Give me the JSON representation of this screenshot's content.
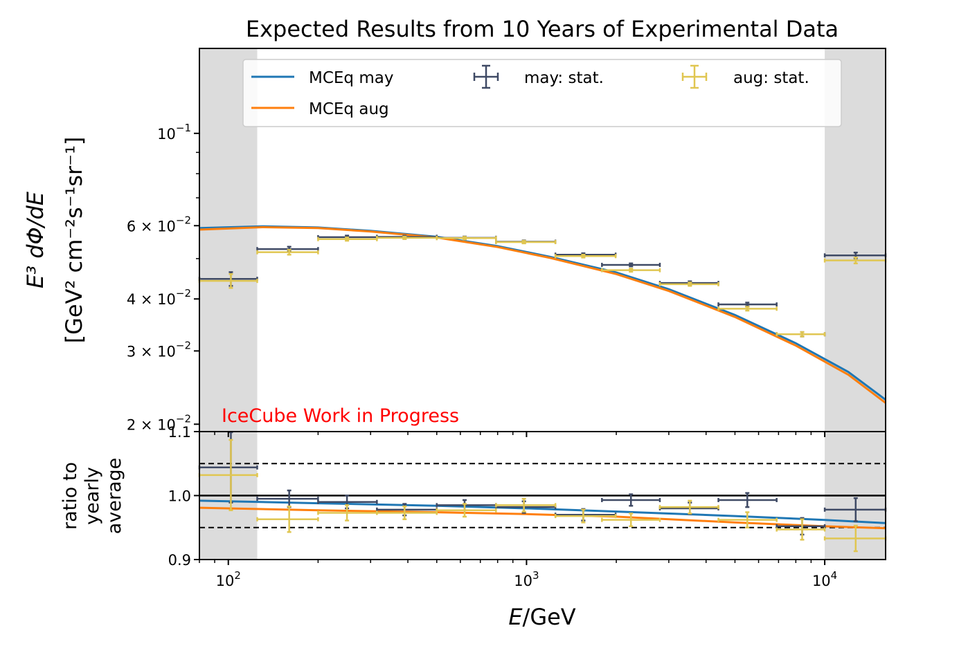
{
  "chart_data": {
    "type": "line",
    "title": "Expected Results from 10 Years of Experimental Data",
    "xlabel_italic": "E",
    "xlabel_rest": "/GeV",
    "x_scale": "log",
    "xlim": [
      80,
      16000
    ],
    "x_ticks": [
      {
        "value": 100,
        "base": "10",
        "exp": "2"
      },
      {
        "value": 1000,
        "base": "10",
        "exp": "3"
      },
      {
        "value": 10000,
        "base": "10",
        "exp": "4"
      }
    ],
    "shaded_regions": [
      [
        80,
        125
      ],
      [
        10000,
        16000
      ]
    ],
    "top_panel": {
      "y_scale": "log",
      "ylim": [
        0.0192,
        0.16
      ],
      "ylabel_line1": "E³ dΦ/dE",
      "ylabel_line2": "[GeV² cm⁻²s⁻¹sr⁻¹]",
      "y_ticks": [
        {
          "value": 0.1,
          "mant": "",
          "exp": "−1"
        },
        {
          "value": 0.06,
          "mant": "6 × ",
          "exp": "−2"
        },
        {
          "value": 0.04,
          "mant": "4 × ",
          "exp": "−2"
        },
        {
          "value": 0.03,
          "mant": "3 × ",
          "exp": "−2"
        },
        {
          "value": 0.02,
          "mant": "2 × ",
          "exp": "−2"
        }
      ],
      "lines": [
        {
          "name": "MCEq may",
          "color": "#1f77b4",
          "x": [
            80,
            130,
            200,
            300,
            500,
            800,
            1200,
            2000,
            3000,
            5000,
            8000,
            12000,
            16000
          ],
          "y": [
            0.0592,
            0.0598,
            0.0594,
            0.0583,
            0.0564,
            0.0536,
            0.0505,
            0.0463,
            0.0422,
            0.0366,
            0.0313,
            0.0267,
            0.0229
          ]
        },
        {
          "name": "MCEq aug",
          "color": "#ff7f0e",
          "x": [
            80,
            130,
            200,
            300,
            500,
            800,
            1200,
            2000,
            3000,
            5000,
            8000,
            12000,
            16000
          ],
          "y": [
            0.0587,
            0.0595,
            0.0592,
            0.0581,
            0.0562,
            0.0533,
            0.0502,
            0.0459,
            0.0418,
            0.0362,
            0.0309,
            0.0263,
            0.0225
          ]
        }
      ],
      "points": [
        {
          "name": "may: stat.",
          "color": "#3f4a65",
          "bins": [
            [
              80,
              125
            ],
            [
              125,
              200
            ],
            [
              200,
              315
            ],
            [
              315,
              500
            ],
            [
              500,
              790
            ],
            [
              790,
              1250
            ],
            [
              1250,
              1990
            ],
            [
              1790,
              2800
            ],
            [
              2800,
              4400
            ],
            [
              4400,
              6900
            ],
            [
              6900,
              10000
            ],
            [
              10000,
              16000
            ]
          ],
          "x": [
            102,
            160,
            250,
            390,
            620,
            980,
            1550,
            2240,
            3530,
            5500,
            8400,
            12700
          ],
          "y": [
            0.0447,
            0.0527,
            0.0563,
            0.0564,
            0.0561,
            0.0549,
            0.0511,
            0.0483,
            0.0437,
            0.0388,
            0.0329,
            0.0509
          ],
          "yerr": [
            0.0017,
            0.0007,
            0.0005,
            0.0004,
            0.0004,
            0.0004,
            0.0004,
            0.0004,
            0.0004,
            0.0004,
            0.0004,
            0.0008
          ]
        },
        {
          "name": "aug: stat.",
          "color": "#e0c651",
          "bins": [
            [
              80,
              125
            ],
            [
              125,
              200
            ],
            [
              200,
              315
            ],
            [
              315,
              500
            ],
            [
              500,
              790
            ],
            [
              790,
              1250
            ],
            [
              1250,
              1990
            ],
            [
              1790,
              2800
            ],
            [
              2800,
              4400
            ],
            [
              4400,
              6900
            ],
            [
              6900,
              10000
            ],
            [
              10000,
              16000
            ]
          ],
          "x": [
            102,
            160,
            250,
            390,
            620,
            980,
            1550,
            2240,
            3530,
            5500,
            8400,
            12700
          ],
          "y": [
            0.0442,
            0.0518,
            0.0557,
            0.0561,
            0.056,
            0.0548,
            0.0507,
            0.0469,
            0.0434,
            0.0379,
            0.0329,
            0.0495
          ],
          "yerr": [
            0.0017,
            0.0007,
            0.0005,
            0.0004,
            0.0004,
            0.0004,
            0.0004,
            0.0004,
            0.0004,
            0.0004,
            0.0004,
            0.0008
          ]
        }
      ],
      "annotation": "IceCube Work in Progress",
      "annotation_color": "#ff0000",
      "legend_placement": "upper-center"
    },
    "bottom_panel": {
      "ylabel_line1": "ratio to",
      "ylabel_line2": "yearly",
      "ylabel_line3": "average",
      "ylim": [
        0.9,
        1.1
      ],
      "y_ticks": [
        "0.9",
        "1.0",
        "1.1"
      ],
      "solid_line": 1.0,
      "dashed_lines": [
        0.95,
        1.05
      ],
      "lines": [
        {
          "name": "MCEq may",
          "color": "#1f77b4",
          "x": [
            80,
            200,
            500,
            1000,
            2000,
            5000,
            10000,
            16000
          ],
          "y": [
            0.992,
            0.988,
            0.984,
            0.98,
            0.975,
            0.968,
            0.962,
            0.957
          ]
        },
        {
          "name": "MCEq aug",
          "color": "#ff7f0e",
          "x": [
            80,
            200,
            500,
            1000,
            2000,
            5000,
            10000,
            16000
          ],
          "y": [
            0.981,
            0.977,
            0.974,
            0.971,
            0.967,
            0.958,
            0.952,
            0.949
          ]
        }
      ],
      "points": [
        {
          "name": "may: stat.",
          "color": "#3f4a65",
          "x": [
            102,
            160,
            250,
            390,
            620,
            980,
            1550,
            2240,
            3530,
            5500,
            8400,
            12700
          ],
          "y": [
            1.044,
            0.995,
            0.99,
            0.978,
            0.985,
            0.982,
            0.97,
            0.993,
            0.98,
            0.993,
            0.952,
            0.978
          ],
          "yerr": [
            0.055,
            0.013,
            0.01,
            0.009,
            0.008,
            0.009,
            0.009,
            0.009,
            0.009,
            0.011,
            0.013,
            0.018
          ]
        },
        {
          "name": "aug: stat.",
          "color": "#e0c651",
          "x": [
            102,
            160,
            250,
            390,
            620,
            980,
            1550,
            2240,
            3530,
            5500,
            8400,
            12700
          ],
          "y": [
            1.032,
            0.963,
            0.973,
            0.973,
            0.977,
            0.985,
            0.968,
            0.962,
            0.982,
            0.962,
            0.947,
            0.933
          ],
          "yerr": [
            0.055,
            0.02,
            0.012,
            0.01,
            0.01,
            0.01,
            0.01,
            0.01,
            0.01,
            0.012,
            0.016,
            0.02
          ]
        }
      ]
    }
  }
}
